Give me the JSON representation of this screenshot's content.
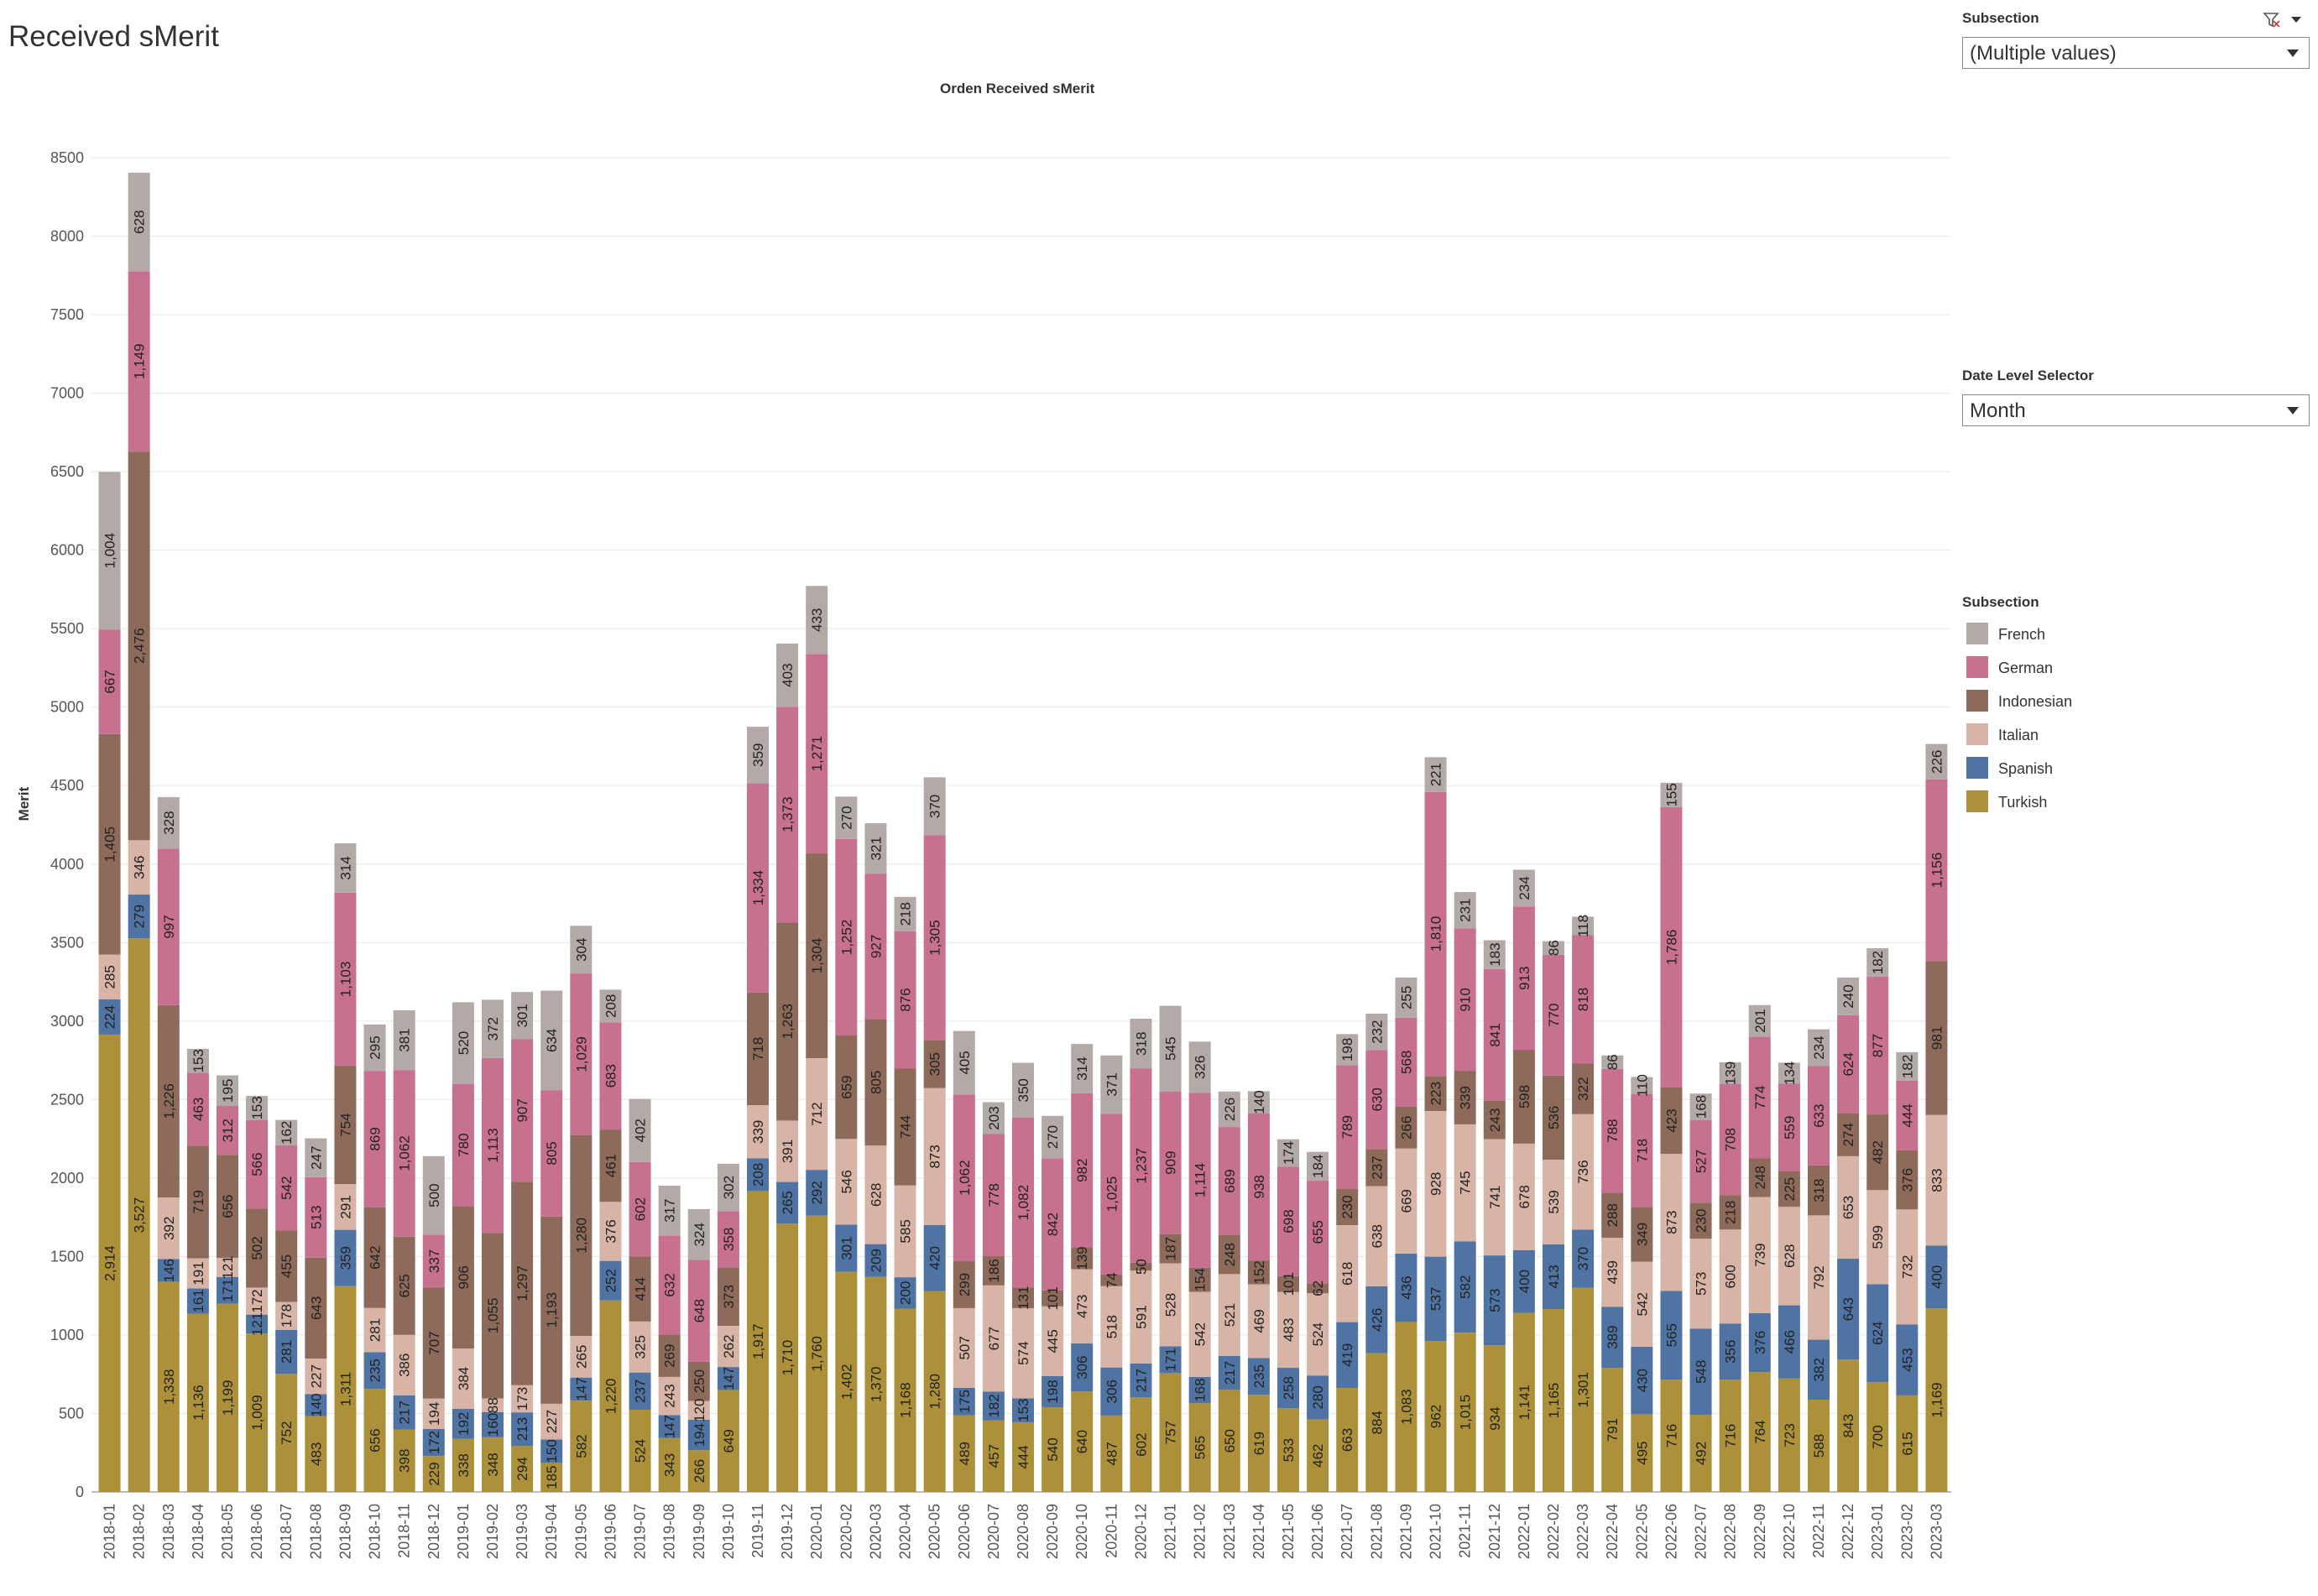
{
  "page": {
    "title": "Received sMerit"
  },
  "controls": {
    "subsection_label": "Subsection",
    "subsection_value": "(Multiple values)",
    "date_level_label": "Date Level Selector",
    "date_level_value": "Month"
  },
  "legend": {
    "title": "Subsection",
    "items": [
      {
        "label": "French",
        "color": "#b3aaa8"
      },
      {
        "label": "German",
        "color": "#c8708f"
      },
      {
        "label": "Indonesian",
        "color": "#8d6a5a"
      },
      {
        "label": "Italian",
        "color": "#d8b4a6"
      },
      {
        "label": "Spanish",
        "color": "#4f74a4"
      },
      {
        "label": "Turkish",
        "color": "#ad913a"
      }
    ]
  },
  "chart_data": {
    "type": "bar",
    "stacked": true,
    "title": "Orden Received sMerit",
    "ylabel": "Merit",
    "ylim": [
      0,
      8500
    ],
    "yticks": [
      0,
      500,
      1000,
      1500,
      2000,
      2500,
      3000,
      3500,
      4000,
      4500,
      5000,
      5500,
      6000,
      6500,
      7000,
      7500,
      8000,
      8500
    ],
    "categories": [
      "2018-01",
      "2018-02",
      "2018-03",
      "2018-04",
      "2018-05",
      "2018-06",
      "2018-07",
      "2018-08",
      "2018-09",
      "2018-10",
      "2018-11",
      "2018-12",
      "2019-01",
      "2019-02",
      "2019-03",
      "2019-04",
      "2019-05",
      "2019-06",
      "2019-07",
      "2019-08",
      "2019-09",
      "2019-10",
      "2019-11",
      "2019-12",
      "2020-01",
      "2020-02",
      "2020-03",
      "2020-04",
      "2020-05",
      "2020-06",
      "2020-07",
      "2020-08",
      "2020-09",
      "2020-10",
      "2020-11",
      "2020-12",
      "2021-01",
      "2021-02",
      "2021-03",
      "2021-04",
      "2021-05",
      "2021-06",
      "2021-07",
      "2021-08",
      "2021-09",
      "2021-10",
      "2021-11",
      "2021-12",
      "2022-01",
      "2022-02",
      "2022-03",
      "2022-04",
      "2022-05",
      "2022-06",
      "2022-07",
      "2022-08",
      "2022-09",
      "2022-10",
      "2022-11",
      "2022-12",
      "2023-01",
      "2023-02",
      "2023-03"
    ],
    "series": [
      {
        "name": "Turkish",
        "values": [
          2914,
          3527,
          1338,
          1136,
          1199,
          1009,
          752,
          483,
          1311,
          656,
          398,
          229,
          338,
          348,
          294,
          185,
          582,
          1220,
          524,
          343,
          266,
          649,
          1917,
          1710,
          1760,
          1402,
          1370,
          1168,
          1280,
          489,
          457,
          444,
          540,
          640,
          487,
          602,
          757,
          565,
          650,
          619,
          533,
          462,
          663,
          884,
          1083,
          962,
          1015,
          934,
          1141,
          1165,
          1301,
          791,
          495,
          716,
          492,
          716,
          764,
          723,
          588,
          843,
          700,
          615,
          1169
        ]
      },
      {
        "name": "Spanish",
        "values": [
          224,
          279,
          146,
          161,
          171,
          121,
          281,
          140,
          359,
          235,
          217,
          172,
          192,
          160,
          213,
          150,
          147,
          252,
          237,
          147,
          194,
          147,
          208,
          265,
          292,
          301,
          209,
          200,
          420,
          175,
          182,
          153,
          198,
          306,
          306,
          217,
          171,
          168,
          217,
          235,
          258,
          280,
          419,
          426,
          436,
          537,
          582,
          573,
          400,
          413,
          370,
          389,
          430,
          565,
          548,
          356,
          376,
          466,
          382,
          643,
          624,
          453,
          400
        ]
      },
      {
        "name": "Italian",
        "values": [
          285,
          346,
          392,
          191,
          121,
          172,
          178,
          227,
          291,
          281,
          386,
          194,
          384,
          88,
          173,
          227,
          265,
          376,
          325,
          243,
          120,
          262,
          339,
          391,
          712,
          546,
          628,
          585,
          873,
          507,
          677,
          574,
          445,
          473,
          518,
          591,
          528,
          542,
          521,
          469,
          483,
          524,
          618,
          638,
          669,
          928,
          745,
          741,
          678,
          539,
          736,
          439,
          542,
          873,
          573,
          600,
          739,
          628,
          792,
          653,
          599,
          732,
          833
        ]
      },
      {
        "name": "Indonesian",
        "values": [
          1405,
          2476,
          1226,
          719,
          656,
          502,
          455,
          643,
          754,
          642,
          625,
          707,
          906,
          1055,
          1297,
          1193,
          1280,
          461,
          414,
          269,
          250,
          373,
          718,
          1263,
          1304,
          659,
          805,
          744,
          305,
          299,
          186,
          131,
          101,
          139,
          74,
          50,
          187,
          154,
          248,
          152,
          101,
          62,
          230,
          237,
          266,
          223,
          339,
          243,
          598,
          536,
          322,
          288,
          349,
          423,
          230,
          218,
          248,
          225,
          318,
          274,
          482,
          376,
          981
        ]
      },
      {
        "name": "German",
        "values": [
          667,
          1149,
          997,
          463,
          312,
          566,
          542,
          513,
          1103,
          869,
          1062,
          337,
          780,
          1113,
          907,
          805,
          1029,
          683,
          602,
          632,
          648,
          358,
          1334,
          1373,
          1271,
          1252,
          927,
          876,
          1305,
          1062,
          778,
          1082,
          842,
          982,
          1025,
          1237,
          909,
          1114,
          689,
          938,
          698,
          655,
          789,
          630,
          568,
          1810,
          910,
          841,
          913,
          770,
          818,
          788,
          718,
          1786,
          527,
          708,
          774,
          559,
          633,
          624,
          877,
          444,
          1156
        ]
      },
      {
        "name": "French",
        "values": [
          1004,
          628,
          328,
          153,
          195,
          153,
          162,
          247,
          314,
          295,
          381,
          500,
          520,
          372,
          301,
          634,
          304,
          208,
          402,
          317,
          324,
          302,
          359,
          403,
          433,
          270,
          321,
          218,
          370,
          405,
          203,
          350,
          270,
          314,
          371,
          318,
          545,
          326,
          226,
          140,
          174,
          184,
          198,
          232,
          255,
          221,
          231,
          183,
          234,
          86,
          118,
          86,
          110,
          155,
          168,
          139,
          201,
          134,
          234,
          240,
          182,
          182,
          226
        ]
      }
    ]
  }
}
